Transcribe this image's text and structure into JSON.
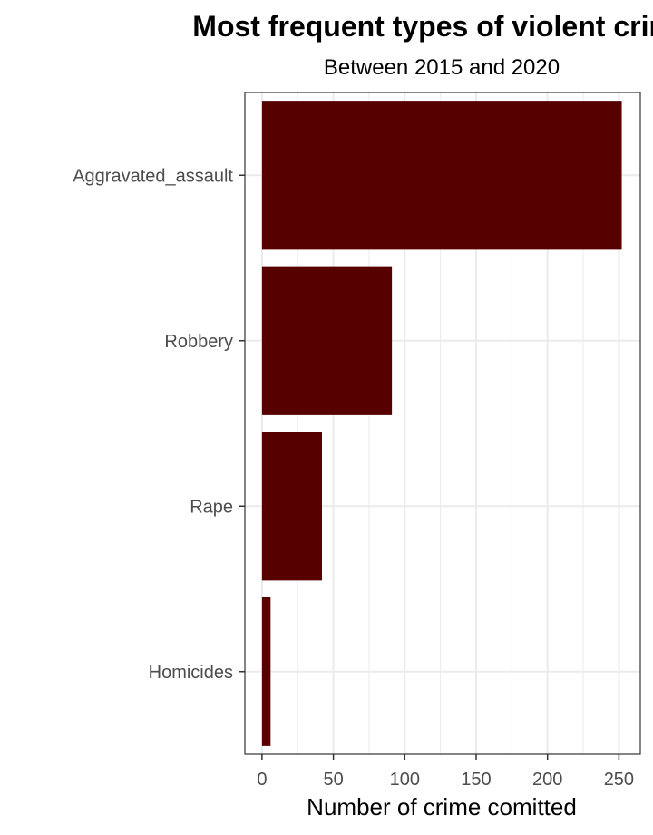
{
  "chart_data": {
    "type": "bar",
    "orientation": "horizontal",
    "title": "Most frequent types of violent crime",
    "subtitle": "Between 2015 and 2020",
    "xlabel": "Number of crime comitted",
    "ylabel": "",
    "categories": [
      "Aggravated_assault",
      "Robbery",
      "Rape",
      "Homicides"
    ],
    "values": [
      252,
      91,
      42,
      6
    ],
    "xlim": [
      -12,
      265
    ],
    "xticks": [
      0,
      50,
      100,
      150,
      200,
      250
    ],
    "grid": true,
    "legend": "none",
    "bar_color": "#560000"
  }
}
